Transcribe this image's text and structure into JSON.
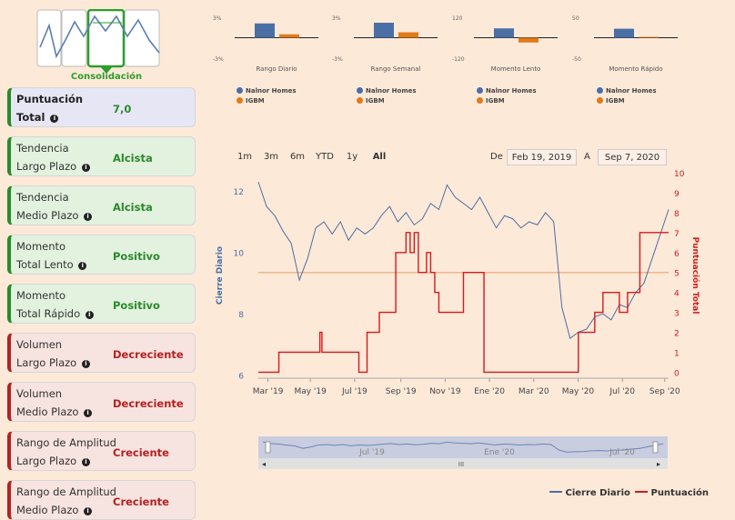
{
  "logo": {
    "label": "Consolidación"
  },
  "cards": [
    {
      "line1": "Puntuación",
      "line2": "Total",
      "value": "7,0",
      "style": "blue"
    },
    {
      "line1": "Tendencia",
      "line2": "Largo Plazo",
      "value": "Alcista",
      "style": "green"
    },
    {
      "line1": "Tendencia",
      "line2": "Medio Plazo",
      "value": "Alcista",
      "style": "green"
    },
    {
      "line1": "Momento",
      "line2": "Total Lento",
      "value": "Positivo",
      "style": "green"
    },
    {
      "line1": "Momento",
      "line2": "Total Rápido",
      "value": "Positivo",
      "style": "green"
    },
    {
      "line1": "Volumen",
      "line2": "Largo Plazo",
      "value": "Decreciente",
      "style": "red"
    },
    {
      "line1": "Volumen",
      "line2": "Medio Plazo",
      "value": "Decreciente",
      "style": "red"
    },
    {
      "line1": "Rango de Amplitud",
      "line2": "Largo Plazo",
      "value": "Creciente",
      "style": "red"
    },
    {
      "line1": "Rango de Amplitud",
      "line2": "Medio Plazo",
      "value": "Creciente",
      "style": "red"
    }
  ],
  "range_selector": {
    "buttons": [
      "1m",
      "3m",
      "6m",
      "YTD",
      "1y",
      "All"
    ],
    "active": "All",
    "from_label": "De",
    "from_date": "Feb 19, 2019",
    "to_label": "A",
    "to_date": "Sep 7, 2020"
  },
  "colors": {
    "primary": "#4a6fa5",
    "secondary": "#e07b1a",
    "score": "#d7191c",
    "price": "#4a6fa5",
    "midline": "#f0b489"
  },
  "chart_data": [
    {
      "type": "bar",
      "title": "Rango Diario",
      "categories": [
        "Nalnor Homes",
        "IGBM"
      ],
      "values": [
        2.1,
        0.5
      ],
      "ylim": [
        -3,
        3
      ],
      "tick_labels": [
        "3%",
        "-3%"
      ]
    },
    {
      "type": "bar",
      "title": "Rango Semanal",
      "categories": [
        "Nalnor Homes",
        "IGBM"
      ],
      "values": [
        2.2,
        0.8
      ],
      "ylim": [
        -3,
        3
      ],
      "tick_labels": [
        "3%",
        "-3%"
      ]
    },
    {
      "type": "bar",
      "title": "Momento Lento",
      "categories": [
        "Nalnor Homes",
        "IGBM"
      ],
      "values": [
        55,
        -28
      ],
      "ylim": [
        -120,
        120
      ],
      "tick_labels": [
        "120",
        "-120"
      ]
    },
    {
      "type": "bar",
      "title": "Momento Rápido",
      "categories": [
        "Nalnor Homes",
        "IGBM"
      ],
      "values": [
        22,
        2
      ],
      "ylim": [
        -50,
        50
      ],
      "tick_labels": [
        "50",
        "-50"
      ]
    },
    {
      "type": "line",
      "title": "",
      "x_ticks": [
        "Mar '19",
        "May '19",
        "Jul '19",
        "Sep '19",
        "Nov '19",
        "Ene '20",
        "Mar '20",
        "May '20",
        "Jul '20",
        "Sep '20"
      ],
      "ylabel": "Cierre Diario",
      "y2label": "Puntuación Total",
      "ylim": [
        5.9,
        12.6
      ],
      "y_ticks": [
        6,
        8,
        10,
        12
      ],
      "y2lim": [
        -0.3,
        10
      ],
      "y2_ticks": [
        0,
        1,
        2,
        3,
        4,
        5,
        6,
        7,
        8,
        9,
        10
      ],
      "reference_line": 5,
      "legend": [
        "Cierre Diario",
        "Puntuación"
      ],
      "navigator_labels": [
        "Jul '19",
        "Ene '20",
        "Jul '20"
      ],
      "navigator_handle": "III",
      "series": [
        {
          "name": "Cierre Diario",
          "x": [
            0,
            2,
            4,
            6,
            8,
            10,
            12,
            14,
            16,
            18,
            20,
            22,
            24,
            26,
            28,
            30,
            32,
            34,
            36,
            38,
            40,
            42,
            44,
            46,
            48,
            50,
            52,
            54,
            56,
            58,
            60,
            62,
            64,
            66,
            68,
            70,
            72,
            74,
            76,
            78,
            80,
            82,
            84,
            86,
            88,
            90,
            92,
            94,
            96,
            98,
            100
          ],
          "values": [
            12.3,
            11.5,
            11.2,
            10.7,
            10.3,
            9.1,
            9.8,
            10.8,
            11.0,
            10.6,
            11.0,
            10.4,
            10.8,
            10.6,
            10.8,
            11.2,
            11.5,
            11.0,
            11.3,
            10.9,
            11.1,
            11.6,
            11.4,
            12.2,
            11.8,
            11.6,
            11.4,
            11.8,
            11.3,
            10.8,
            11.2,
            11.1,
            10.8,
            11.0,
            10.9,
            11.3,
            11.0,
            8.2,
            7.2,
            7.4,
            7.5,
            7.9,
            8.0,
            7.8,
            8.3,
            8.2,
            8.7,
            9.0,
            9.8,
            10.6,
            11.4
          ]
        },
        {
          "name": "Puntuación",
          "x": [
            0,
            4,
            5,
            14,
            15,
            15.5,
            24,
            24.5,
            26,
            26.5,
            29,
            29.5,
            30.5,
            31,
            33,
            33.5,
            35,
            36,
            37,
            38,
            39,
            40,
            41,
            42,
            43,
            44,
            45,
            46,
            47,
            48,
            49,
            50,
            54,
            55,
            56,
            57,
            58,
            59,
            60,
            61,
            62,
            63,
            64,
            65,
            66,
            67,
            74,
            78,
            80,
            82,
            84,
            86,
            88,
            89,
            90,
            92,
            93,
            95,
            100
          ],
          "values": [
            0,
            0,
            1,
            1,
            2,
            1,
            1,
            0,
            0,
            2,
            2,
            3,
            3,
            3,
            3,
            6,
            6,
            7,
            6,
            7,
            5,
            5,
            6,
            5,
            4,
            3,
            3,
            3,
            3,
            3,
            3,
            5,
            5,
            0,
            0,
            0,
            0,
            0,
            0,
            0,
            0,
            0,
            0,
            0,
            0,
            0,
            0,
            2,
            2,
            3,
            4,
            4,
            3,
            3,
            4,
            4,
            7,
            7,
            7
          ]
        }
      ]
    }
  ]
}
